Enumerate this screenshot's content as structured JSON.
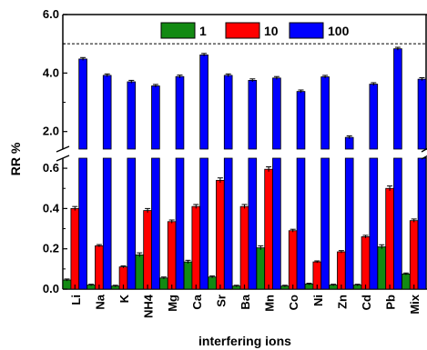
{
  "chart_data": {
    "type": "bar",
    "xlabel": "interfering ions",
    "ylabel": "RR %",
    "categories": [
      "Li",
      "Na",
      "K",
      "NH4",
      "Mg",
      "Ca",
      "Sr",
      "Ba",
      "Mn",
      "Co",
      "Ni",
      "Zn",
      "Cd",
      "Pb",
      "Mix"
    ],
    "series": [
      {
        "name": "1",
        "color": "#138a13",
        "values": [
          0.045,
          0.02,
          0.015,
          0.17,
          0.055,
          0.135,
          0.06,
          0.015,
          0.205,
          0.015,
          0.025,
          0.02,
          0.02,
          0.21,
          0.075
        ],
        "errors": [
          0.005,
          0.004,
          0.004,
          0.01,
          0.005,
          0.008,
          0.005,
          0.004,
          0.01,
          0.004,
          0.004,
          0.004,
          0.004,
          0.01,
          0.005
        ]
      },
      {
        "name": "10",
        "color": "#ff0000",
        "values": [
          0.4,
          0.215,
          0.11,
          0.39,
          0.335,
          0.41,
          0.54,
          0.41,
          0.595,
          0.29,
          0.135,
          0.185,
          0.26,
          0.5,
          0.34
        ],
        "errors": [
          0.01,
          0.006,
          0.005,
          0.01,
          0.008,
          0.01,
          0.012,
          0.01,
          0.012,
          0.007,
          0.005,
          0.006,
          0.007,
          0.012,
          0.008
        ]
      },
      {
        "name": "100",
        "color": "#0000ff",
        "values": [
          4.48,
          3.92,
          3.7,
          3.56,
          3.88,
          4.62,
          3.92,
          3.75,
          3.83,
          3.37,
          3.87,
          1.8,
          3.62,
          4.83,
          3.79
        ],
        "errors": [
          0.05,
          0.05,
          0.05,
          0.05,
          0.05,
          0.05,
          0.05,
          0.05,
          0.05,
          0.05,
          0.05,
          0.05,
          0.05,
          0.05,
          0.05
        ]
      }
    ],
    "ylim_lower": [
      0,
      0.65
    ],
    "ylim_upper": [
      1.4,
      6.0
    ],
    "axis_break": true,
    "yticks_lower": [
      "0.0",
      "0.2",
      "0.4",
      "0.6"
    ],
    "yticks_upper": [
      "2.0",
      "4.0",
      "6.0"
    ],
    "reference_line": 5.0,
    "legend_position": "top-center",
    "grid": false
  }
}
